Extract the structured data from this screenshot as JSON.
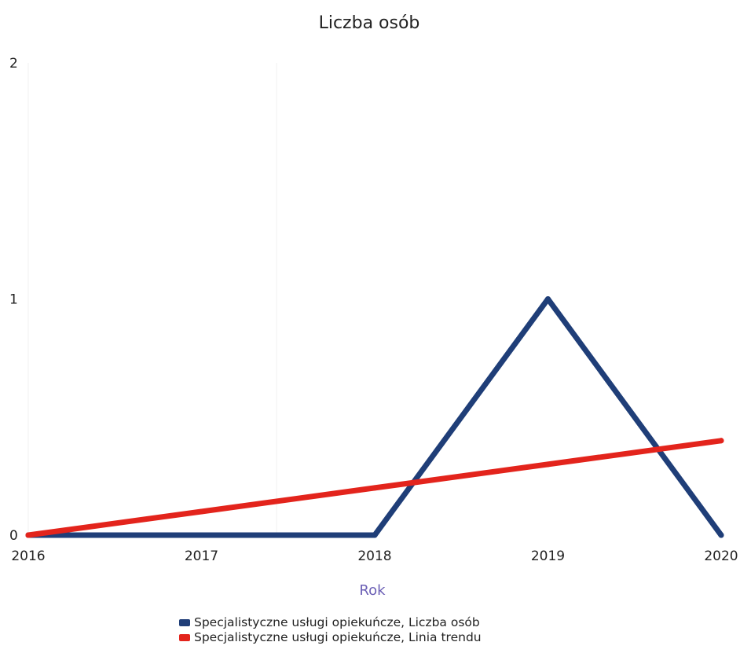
{
  "chart_data": {
    "type": "line",
    "title": "Liczba osób",
    "xlabel": "Rok",
    "ylabel": "",
    "x": [
      "2016",
      "2017",
      "2018",
      "2019",
      "2020"
    ],
    "ylim": [
      0,
      2
    ],
    "yticks": [
      "0",
      "1",
      "2"
    ],
    "grid": false,
    "legend_position": "bottom",
    "series": [
      {
        "name": "Specjalistyczne usługi opiekuńcze, Liczba osób",
        "color": "#1f3e78",
        "values": [
          0,
          0,
          0,
          1,
          0
        ]
      },
      {
        "name": "Specjalistyczne usługi opiekuńcze, Linia trendu",
        "color": "#e3241c",
        "values": [
          0,
          0.1,
          0.2,
          0.3,
          0.4
        ]
      }
    ]
  }
}
